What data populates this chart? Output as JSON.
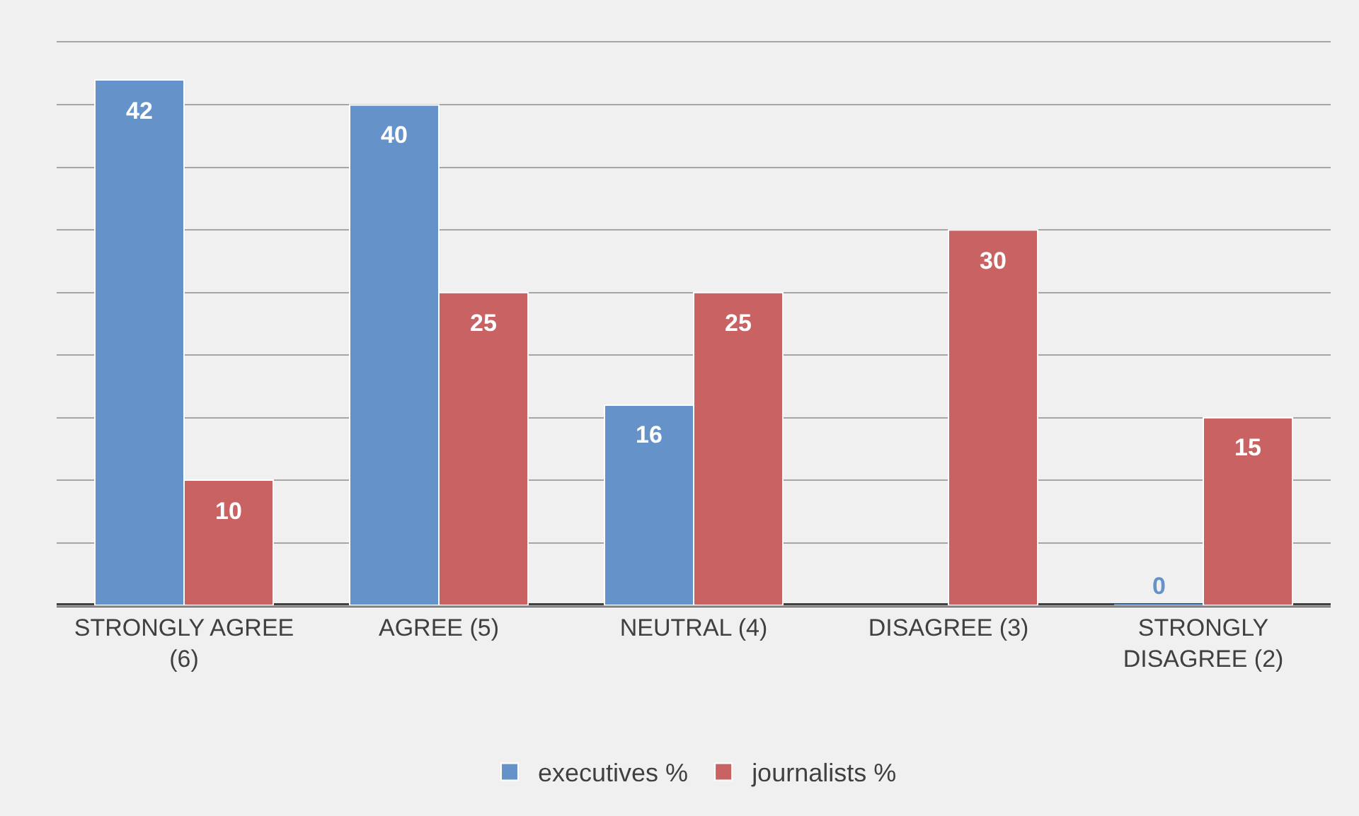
{
  "chart_data": {
    "type": "bar",
    "categories": [
      "STRONGLY AGREE (6)",
      "AGREE (5)",
      "NEUTRAL (4)",
      "DISAGREE (3)",
      "STRONGLY DISAGREE (2)"
    ],
    "series": [
      {
        "name": "executives %",
        "color": "#6592c9",
        "values": [
          42,
          40,
          16,
          null,
          0
        ]
      },
      {
        "name": "journalists %",
        "color": "#c96262",
        "values": [
          10,
          25,
          25,
          30,
          15
        ]
      }
    ],
    "ylim": [
      0,
      45
    ],
    "yticks": [
      {
        "value": 0,
        "label": null
      },
      {
        "value": 5,
        "label": null
      },
      {
        "value": 10,
        "label": null
      },
      {
        "value": 15,
        "label": null
      },
      {
        "value": 20,
        "label": null
      },
      {
        "value": 25,
        "label": null
      },
      {
        "value": 30,
        "label": null
      },
      {
        "value": 35,
        "label": null
      },
      {
        "value": 40,
        "label": null
      },
      {
        "value": 45,
        "label": null
      }
    ],
    "tick_labels": "x",
    "grid": "y",
    "legend": "bottom",
    "data_labels": true
  }
}
